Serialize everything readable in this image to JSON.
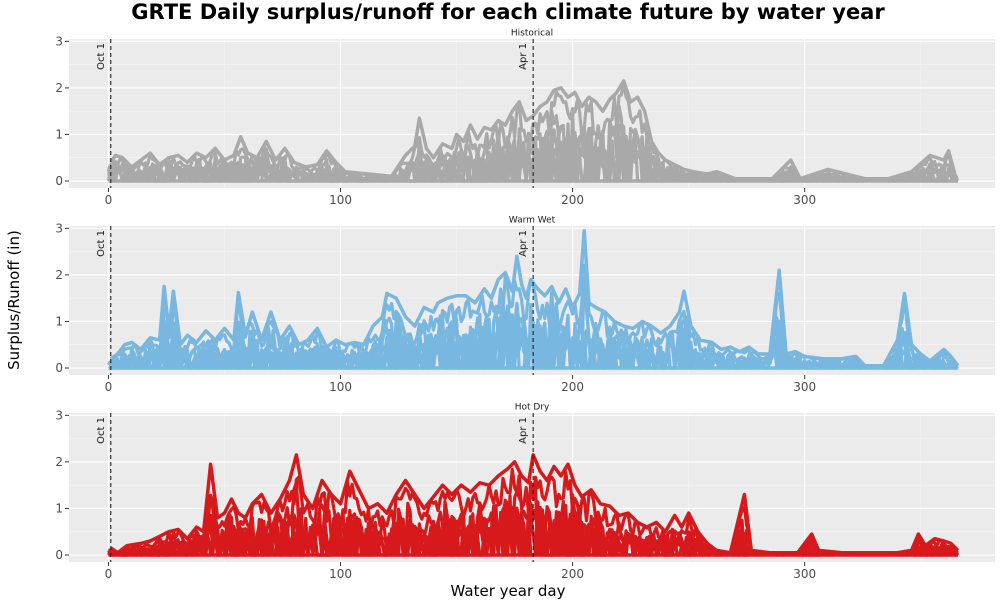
{
  "chart_data": {
    "type": "line",
    "title": "GRTE Daily surplus/runoff for each climate future by water year",
    "xlabel": "Water year day",
    "ylabel": "Surplus/Runoff (in)",
    "xlim": [
      -17,
      382
    ],
    "ylim": [
      -0.15,
      3.05
    ],
    "x_ticks": [
      0,
      100,
      200,
      300
    ],
    "y_ticks": [
      0,
      1,
      2,
      3
    ],
    "grid": true,
    "reference_lines": [
      {
        "x": 1,
        "label": "Oct 1"
      },
      {
        "x": 183,
        "label": "Apr 1"
      }
    ],
    "facets": [
      {
        "name": "Historical",
        "color": "#a9a9a9",
        "peaks": [
          [
            1,
            0.4
          ],
          [
            3,
            0.55
          ],
          [
            6,
            0.5
          ],
          [
            10,
            0.3
          ],
          [
            14,
            0.45
          ],
          [
            18,
            0.6
          ],
          [
            22,
            0.35
          ],
          [
            26,
            0.5
          ],
          [
            30,
            0.55
          ],
          [
            34,
            0.4
          ],
          [
            38,
            0.6
          ],
          [
            42,
            0.5
          ],
          [
            46,
            0.7
          ],
          [
            50,
            0.45
          ],
          [
            54,
            0.55
          ],
          [
            57,
            0.95
          ],
          [
            60,
            0.6
          ],
          [
            64,
            0.5
          ],
          [
            68,
            0.85
          ],
          [
            72,
            0.45
          ],
          [
            76,
            0.7
          ],
          [
            80,
            0.4
          ],
          [
            85,
            0.3
          ],
          [
            90,
            0.35
          ],
          [
            94,
            0.65
          ],
          [
            98,
            0.4
          ],
          [
            102,
            0.2
          ],
          [
            112,
            0.15
          ],
          [
            122,
            0.1
          ],
          [
            128,
            0.55
          ],
          [
            132,
            0.75
          ],
          [
            134,
            1.35
          ],
          [
            137,
            0.7
          ],
          [
            140,
            0.5
          ],
          [
            144,
            0.8
          ],
          [
            148,
            0.7
          ],
          [
            150,
            1.0
          ],
          [
            153,
            0.85
          ],
          [
            156,
            1.2
          ],
          [
            159,
            0.9
          ],
          [
            162,
            1.15
          ],
          [
            165,
            1.1
          ],
          [
            168,
            1.3
          ],
          [
            171,
            1.2
          ],
          [
            174,
            1.5
          ],
          [
            177,
            1.7
          ],
          [
            180,
            1.3
          ],
          [
            183,
            1.4
          ],
          [
            186,
            1.6
          ],
          [
            189,
            1.7
          ],
          [
            192,
            1.95
          ],
          [
            195,
            2.0
          ],
          [
            198,
            1.8
          ],
          [
            201,
            1.9
          ],
          [
            204,
            1.6
          ],
          [
            207,
            1.8
          ],
          [
            210,
            1.7
          ],
          [
            213,
            1.5
          ],
          [
            216,
            1.75
          ],
          [
            219,
            1.9
          ],
          [
            222,
            2.15
          ],
          [
            225,
            1.7
          ],
          [
            228,
            1.8
          ],
          [
            231,
            1.5
          ],
          [
            234,
            0.85
          ],
          [
            237,
            0.6
          ],
          [
            240,
            0.45
          ],
          [
            244,
            0.35
          ],
          [
            248,
            0.25
          ],
          [
            252,
            0.2
          ],
          [
            258,
            0.15
          ],
          [
            262,
            0.2
          ],
          [
            270,
            0.05
          ],
          [
            286,
            0.05
          ],
          [
            294,
            0.45
          ],
          [
            298,
            0.05
          ],
          [
            310,
            0.25
          ],
          [
            326,
            0.05
          ],
          [
            336,
            0.05
          ],
          [
            346,
            0.2
          ],
          [
            354,
            0.55
          ],
          [
            360,
            0.45
          ],
          [
            362,
            0.65
          ],
          [
            365,
            0.1
          ]
        ]
      },
      {
        "name": "Warm Wet",
        "color": "#77b7e0",
        "peaks": [
          [
            1,
            0.2
          ],
          [
            4,
            0.3
          ],
          [
            7,
            0.5
          ],
          [
            10,
            0.55
          ],
          [
            14,
            0.4
          ],
          [
            18,
            0.65
          ],
          [
            22,
            0.6
          ],
          [
            24,
            1.75
          ],
          [
            26,
            0.8
          ],
          [
            28,
            1.65
          ],
          [
            31,
            0.5
          ],
          [
            34,
            0.7
          ],
          [
            38,
            0.55
          ],
          [
            42,
            0.8
          ],
          [
            46,
            0.6
          ],
          [
            50,
            0.85
          ],
          [
            54,
            0.6
          ],
          [
            56,
            1.62
          ],
          [
            59,
            0.7
          ],
          [
            62,
            1.2
          ],
          [
            66,
            0.6
          ],
          [
            70,
            1.2
          ],
          [
            74,
            0.6
          ],
          [
            78,
            0.9
          ],
          [
            82,
            0.5
          ],
          [
            86,
            0.6
          ],
          [
            90,
            0.85
          ],
          [
            94,
            0.45
          ],
          [
            98,
            0.6
          ],
          [
            102,
            0.5
          ],
          [
            106,
            0.55
          ],
          [
            110,
            0.5
          ],
          [
            114,
            0.9
          ],
          [
            118,
            1.1
          ],
          [
            120,
            1.6
          ],
          [
            124,
            1.5
          ],
          [
            128,
            1.1
          ],
          [
            132,
            0.9
          ],
          [
            136,
            1.3
          ],
          [
            140,
            1.2
          ],
          [
            142,
            1.4
          ],
          [
            146,
            1.5
          ],
          [
            150,
            1.55
          ],
          [
            154,
            1.55
          ],
          [
            158,
            1.4
          ],
          [
            162,
            1.7
          ],
          [
            165,
            1.5
          ],
          [
            168,
            1.9
          ],
          [
            171,
            2.05
          ],
          [
            174,
            1.65
          ],
          [
            176,
            2.4
          ],
          [
            178,
            1.8
          ],
          [
            180,
            1.5
          ],
          [
            182,
            1.9
          ],
          [
            185,
            1.7
          ],
          [
            188,
            1.55
          ],
          [
            191,
            1.75
          ],
          [
            194,
            1.4
          ],
          [
            197,
            1.7
          ],
          [
            200,
            1.3
          ],
          [
            203,
            1.6
          ],
          [
            205,
            2.95
          ],
          [
            207,
            1.4
          ],
          [
            210,
            1.3
          ],
          [
            214,
            1.2
          ],
          [
            218,
            1.0
          ],
          [
            222,
            0.9
          ],
          [
            226,
            0.85
          ],
          [
            230,
            1.0
          ],
          [
            234,
            0.9
          ],
          [
            238,
            0.75
          ],
          [
            242,
            0.9
          ],
          [
            246,
            1.2
          ],
          [
            248,
            1.65
          ],
          [
            251,
            0.9
          ],
          [
            255,
            0.6
          ],
          [
            260,
            0.55
          ],
          [
            264,
            0.4
          ],
          [
            268,
            0.45
          ],
          [
            272,
            0.35
          ],
          [
            276,
            0.45
          ],
          [
            280,
            0.3
          ],
          [
            285,
            0.3
          ],
          [
            289,
            2.1
          ],
          [
            292,
            0.3
          ],
          [
            296,
            0.35
          ],
          [
            300,
            0.25
          ],
          [
            308,
            0.2
          ],
          [
            316,
            0.2
          ],
          [
            322,
            0.25
          ],
          [
            326,
            0.05
          ],
          [
            334,
            0.05
          ],
          [
            340,
            0.6
          ],
          [
            343,
            1.6
          ],
          [
            346,
            0.5
          ],
          [
            350,
            0.3
          ],
          [
            354,
            0.15
          ],
          [
            360,
            0.4
          ],
          [
            363,
            0.25
          ],
          [
            366,
            0.05
          ]
        ]
      },
      {
        "name": "Hot Dry",
        "color": "#d7191c",
        "peaks": [
          [
            1,
            0.15
          ],
          [
            4,
            0.05
          ],
          [
            8,
            0.2
          ],
          [
            14,
            0.25
          ],
          [
            18,
            0.3
          ],
          [
            22,
            0.4
          ],
          [
            26,
            0.5
          ],
          [
            30,
            0.55
          ],
          [
            34,
            0.35
          ],
          [
            38,
            0.6
          ],
          [
            41,
            0.5
          ],
          [
            44,
            1.95
          ],
          [
            47,
            0.8
          ],
          [
            50,
            0.9
          ],
          [
            53,
            1.2
          ],
          [
            56,
            0.9
          ],
          [
            59,
            0.8
          ],
          [
            62,
            1.1
          ],
          [
            66,
            1.3
          ],
          [
            70,
            0.9
          ],
          [
            74,
            1.2
          ],
          [
            78,
            1.6
          ],
          [
            81,
            2.15
          ],
          [
            84,
            1.3
          ],
          [
            88,
            1.0
          ],
          [
            92,
            1.6
          ],
          [
            96,
            1.3
          ],
          [
            100,
            1.1
          ],
          [
            104,
            1.8
          ],
          [
            108,
            1.4
          ],
          [
            112,
            1.0
          ],
          [
            116,
            1.1
          ],
          [
            120,
            0.9
          ],
          [
            124,
            1.3
          ],
          [
            128,
            1.6
          ],
          [
            132,
            1.3
          ],
          [
            136,
            1.0
          ],
          [
            140,
            1.25
          ],
          [
            144,
            1.5
          ],
          [
            148,
            1.3
          ],
          [
            152,
            1.5
          ],
          [
            156,
            1.35
          ],
          [
            160,
            1.55
          ],
          [
            164,
            1.5
          ],
          [
            168,
            1.7
          ],
          [
            172,
            1.85
          ],
          [
            175,
            2.0
          ],
          [
            178,
            1.7
          ],
          [
            181,
            1.55
          ],
          [
            183,
            2.15
          ],
          [
            186,
            1.8
          ],
          [
            189,
            1.6
          ],
          [
            192,
            1.9
          ],
          [
            195,
            1.7
          ],
          [
            198,
            1.95
          ],
          [
            201,
            1.5
          ],
          [
            204,
            1.25
          ],
          [
            208,
            1.4
          ],
          [
            212,
            1.1
          ],
          [
            216,
            1.05
          ],
          [
            220,
            0.85
          ],
          [
            224,
            0.9
          ],
          [
            228,
            0.7
          ],
          [
            232,
            0.6
          ],
          [
            236,
            0.7
          ],
          [
            240,
            0.5
          ],
          [
            244,
            0.85
          ],
          [
            247,
            0.6
          ],
          [
            250,
            0.9
          ],
          [
            254,
            0.5
          ],
          [
            258,
            0.25
          ],
          [
            262,
            0.1
          ],
          [
            268,
            0.05
          ],
          [
            274,
            1.3
          ],
          [
            277,
            0.1
          ],
          [
            285,
            0.05
          ],
          [
            297,
            0.05
          ],
          [
            303,
            0.45
          ],
          [
            306,
            0.1
          ],
          [
            316,
            0.05
          ],
          [
            340,
            0.05
          ],
          [
            346,
            0.1
          ],
          [
            349,
            0.45
          ],
          [
            352,
            0.2
          ],
          [
            356,
            0.35
          ],
          [
            360,
            0.3
          ],
          [
            363,
            0.25
          ],
          [
            366,
            0.1
          ]
        ]
      }
    ]
  }
}
